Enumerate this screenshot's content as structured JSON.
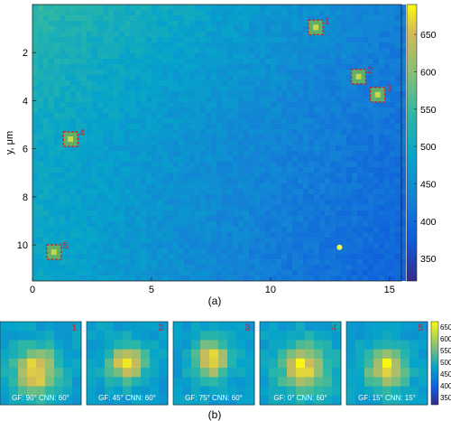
{
  "chart_data": [
    {
      "type": "heatmap",
      "title": "",
      "xlabel": "",
      "ylabel": "y, μm",
      "xlim": [
        0,
        15.5
      ],
      "ylim": [
        11.5,
        0
      ],
      "x_ticks": [
        "0",
        "5",
        "10",
        "15"
      ],
      "y_ticks": [
        "2",
        "4",
        "6",
        "8",
        "10"
      ],
      "colorbar_ticks": [
        "350",
        "400",
        "450",
        "500",
        "550",
        "600",
        "650"
      ],
      "colorbar_range": [
        320,
        690
      ],
      "colormap": "parula",
      "caption": "(a)",
      "markers": [
        {
          "label": "1",
          "x": 11.9,
          "y": 0.95
        },
        {
          "label": "2",
          "x": 13.7,
          "y": 3.0
        },
        {
          "label": "3",
          "x": 14.5,
          "y": 3.75
        },
        {
          "label": "4",
          "x": 1.6,
          "y": 5.6
        },
        {
          "label": "5",
          "x": 0.9,
          "y": 10.3
        }
      ],
      "bright_spot": {
        "x": 12.9,
        "y": 10.1
      }
    },
    {
      "type": "heatmap",
      "caption": "(b)",
      "colorbar_ticks": [
        "650",
        "600",
        "550",
        "500",
        "450",
        "400",
        "350"
      ],
      "panels": [
        {
          "id": "1",
          "label": "GF: 90°  CNN: 60°"
        },
        {
          "id": "2",
          "label": "GF: 45°  CNN: 60°"
        },
        {
          "id": "3",
          "label": "GF: 75°  CNN: 60°"
        },
        {
          "id": "4",
          "label": "GF: 0°  CNN: 60°"
        },
        {
          "id": "5",
          "label": "GF: 15°  CNN: 15°"
        }
      ]
    }
  ],
  "colors": {
    "marker": "#d42020",
    "marker_label": "#d42020",
    "panel_label": "#ffffff",
    "panel_id": "#d42020"
  }
}
